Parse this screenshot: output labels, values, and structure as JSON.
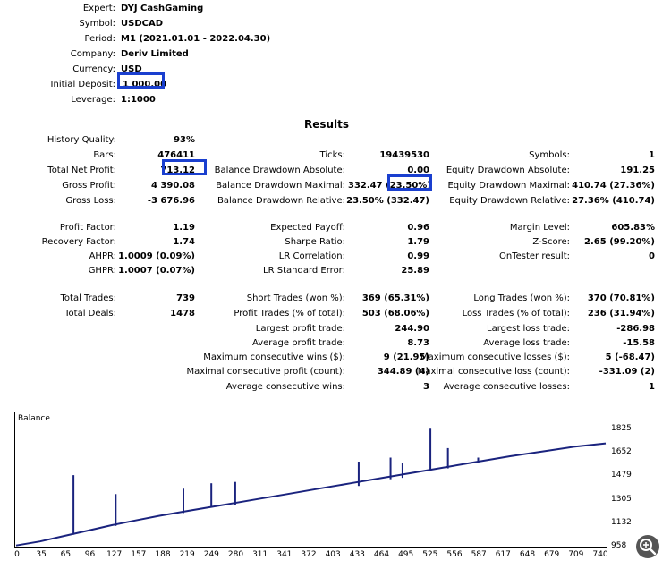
{
  "header": {
    "expert_label": "Expert:",
    "expert": "DYJ CashGaming",
    "symbol_label": "Symbol:",
    "symbol": "USDCAD",
    "period_label": "Period:",
    "period": "M1 (2021.01.01 - 2022.04.30)",
    "company_label": "Company:",
    "company": "Deriv Limited",
    "currency_label": "Currency:",
    "currency": "USD",
    "deposit_label": "Initial Deposit:",
    "deposit": "1 000.00",
    "leverage_label": "Leverage:",
    "leverage": "1:1000"
  },
  "results_title": "Results",
  "col1": {
    "history_quality_label": "History Quality:",
    "history_quality": "93%",
    "bars_label": "Bars:",
    "bars": "476411",
    "net_profit_label": "Total Net Profit:",
    "net_profit": "713.12",
    "gross_profit_label": "Gross Profit:",
    "gross_profit": "4 390.08",
    "gross_loss_label": "Gross Loss:",
    "gross_loss": "-3 676.96",
    "profit_factor_label": "Profit Factor:",
    "profit_factor": "1.19",
    "recovery_factor_label": "Recovery Factor:",
    "recovery_factor": "1.74",
    "ahpr_label": "AHPR:",
    "ahpr": "1.0009 (0.09%)",
    "ghpr_label": "GHPR:",
    "ghpr": "1.0007 (0.07%)",
    "total_trades_label": "Total Trades:",
    "total_trades": "739",
    "total_deals_label": "Total Deals:",
    "total_deals": "1478"
  },
  "col2": {
    "ticks_label": "Ticks:",
    "ticks": "19439530",
    "bal_dd_abs_label": "Balance Drawdown Absolute:",
    "bal_dd_abs": "0.00",
    "bal_dd_max_label": "Balance Drawdown Maximal:",
    "bal_dd_max_a": "332.47",
    "bal_dd_max_b": "23.50%)",
    "bal_dd_rel_label": "Balance Drawdown Relative:",
    "bal_dd_rel": "23.50% (332.47)",
    "exp_payoff_label": "Expected Payoff:",
    "exp_payoff": "0.96",
    "sharpe_label": "Sharpe Ratio:",
    "sharpe": "1.79",
    "lr_corr_label": "LR Correlation:",
    "lr_corr": "0.99",
    "lr_err_label": "LR Standard Error:",
    "lr_err": "25.89",
    "short_label": "Short Trades (won %):",
    "short": "369 (65.31%)",
    "profit_trades_label": "Profit Trades (% of total):",
    "profit_trades": "503 (68.06%)",
    "largest_profit_label": "Largest profit trade:",
    "largest_profit": "244.90",
    "avg_profit_label": "Average profit trade:",
    "avg_profit": "8.73",
    "max_cons_wins_label": "Maximum consecutive wins ($):",
    "max_cons_wins": "9 (21.95)",
    "max_cons_profit_label": "Maximal consecutive profit (count):",
    "max_cons_profit": "344.89 (4)",
    "avg_cons_wins_label": "Average consecutive wins:",
    "avg_cons_wins": "3"
  },
  "col3": {
    "symbols_label": "Symbols:",
    "symbols": "1",
    "eq_dd_abs_label": "Equity Drawdown Absolute:",
    "eq_dd_abs": "191.25",
    "eq_dd_max_label": "Equity Drawdown Maximal:",
    "eq_dd_max": "410.74 (27.36%)",
    "eq_dd_rel_label": "Equity Drawdown Relative:",
    "eq_dd_rel": "27.36% (410.74)",
    "margin_label": "Margin Level:",
    "margin": "605.83%",
    "zscore_label": "Z-Score:",
    "zscore": "2.65 (99.20%)",
    "ontester_label": "OnTester result:",
    "ontester": "0",
    "long_label": "Long Trades (won %):",
    "long": "370 (70.81%)",
    "loss_trades_label": "Loss Trades (% of total):",
    "loss_trades": "236 (31.94%)",
    "largest_loss_label": "Largest loss trade:",
    "largest_loss": "-286.98",
    "avg_loss_label": "Average loss trade:",
    "avg_loss": "-15.58",
    "max_cons_losses_label": "Maximum consecutive losses ($):",
    "max_cons_losses": "5 (-68.47)",
    "max_cons_loss_label": "Maximal consecutive loss (count):",
    "max_cons_loss": "-331.09 (2)",
    "avg_cons_losses_label": "Average consecutive losses:",
    "avg_cons_losses": "1"
  },
  "chart_data": {
    "type": "line",
    "title": "Balance",
    "y_ticks": [
      "1825",
      "1652",
      "1479",
      "1305",
      "1132",
      "958"
    ],
    "ylim": [
      958,
      1825
    ],
    "x_ticks": [
      "0",
      "35",
      "65",
      "96",
      "127",
      "157",
      "188",
      "219",
      "249",
      "280",
      "311",
      "341",
      "372",
      "403",
      "433",
      "464",
      "495",
      "525",
      "556",
      "587",
      "617",
      "648",
      "679",
      "709",
      "740"
    ],
    "xlim": [
      0,
      740
    ],
    "series": [
      {
        "color": "#1a237e",
        "x": [
          0,
          30,
          60,
          90,
          120,
          150,
          180,
          220,
          260,
          300,
          340,
          380,
          420,
          460,
          500,
          540,
          580,
          620,
          660,
          700,
          740
        ],
        "values": [
          960,
          990,
          1030,
          1070,
          1110,
          1145,
          1180,
          1220,
          1260,
          1300,
          1340,
          1380,
          1420,
          1460,
          1500,
          1540,
          1580,
          1620,
          1655,
          1690,
          1715
        ]
      }
    ],
    "spikes": [
      {
        "x": 72,
        "value": 1480,
        "base": 1040
      },
      {
        "x": 125,
        "value": 1340,
        "base": 1105
      },
      {
        "x": 210,
        "value": 1380,
        "base": 1200
      },
      {
        "x": 245,
        "value": 1420,
        "base": 1240
      },
      {
        "x": 275,
        "value": 1430,
        "base": 1260
      },
      {
        "x": 430,
        "value": 1580,
        "base": 1400
      },
      {
        "x": 470,
        "value": 1610,
        "base": 1450
      },
      {
        "x": 485,
        "value": 1570,
        "base": 1460
      },
      {
        "x": 520,
        "value": 1830,
        "base": 1510
      },
      {
        "x": 542,
        "value": 1680,
        "base": 1530
      },
      {
        "x": 580,
        "value": 1610,
        "base": 1570
      }
    ]
  },
  "zoom_icon": "zoom-in-icon"
}
